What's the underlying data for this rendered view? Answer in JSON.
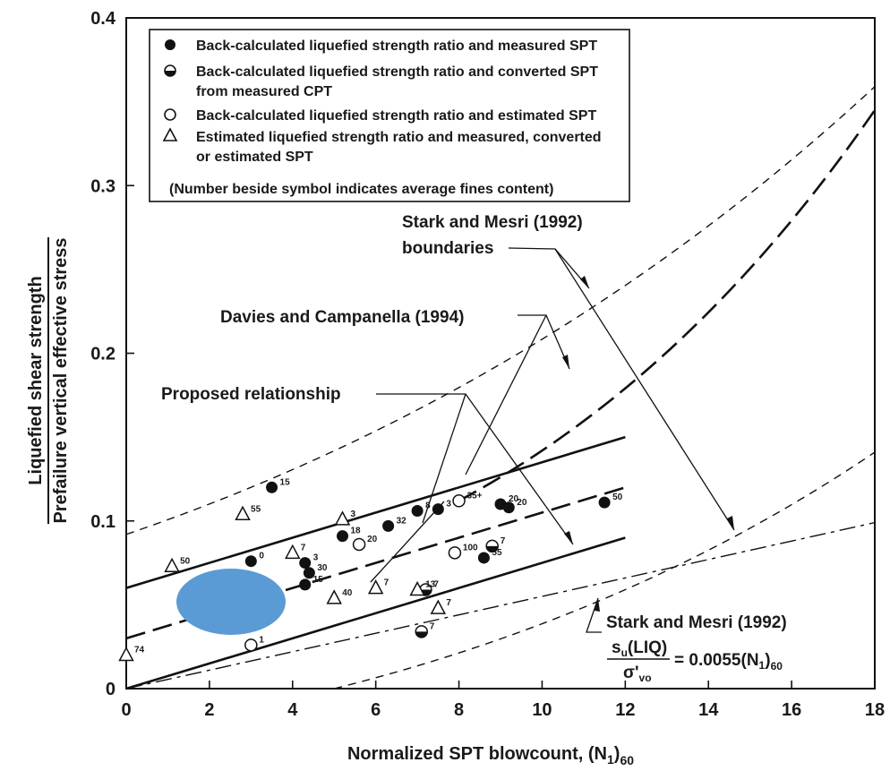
{
  "chart_data": {
    "type": "scatter",
    "title": "",
    "xlabel": "Normalized SPT blowcount, (N",
    "xlabel_sub": "1",
    "xlabel_end": ")",
    "xlabel_sub2": "60",
    "ylabel_top": "Liquefied shear strength",
    "ylabel_bottom": "Prefailure vertical effective stress",
    "xlim": [
      0,
      18
    ],
    "ylim": [
      0,
      0.4
    ],
    "xticks": [
      "0",
      "2",
      "4",
      "6",
      "8",
      "10",
      "12",
      "14",
      "16",
      "18"
    ],
    "yticks": [
      "0",
      "0.1",
      "0.2",
      "0.3",
      "0.4"
    ],
    "grid": false,
    "legend": {
      "position": "top-left",
      "entries": [
        {
          "marker": "filled-circle",
          "lines": [
            "Back-calculated liquefied strength ratio and measured SPT"
          ]
        },
        {
          "marker": "half-circle",
          "lines": [
            "Back-calculated liquefied strength ratio and converted SPT",
            "from measured CPT"
          ]
        },
        {
          "marker": "open-circle",
          "lines": [
            "Back-calculated liquefied strength ratio and estimated SPT"
          ]
        },
        {
          "marker": "triangle",
          "lines": [
            "Estimated liquefied strength ratio and measured, converted",
            "or estimated SPT"
          ]
        }
      ],
      "note": "(Number beside symbol indicates average fines content)"
    },
    "annotations": {
      "stark_boundaries": [
        "Stark and Mesri (1992)",
        "boundaries"
      ],
      "davies": "Davies and Campanella (1994)",
      "proposed": "Proposed relationship",
      "stark_eq_title": "Stark and Mesri (1992)",
      "stark_eq_num": "s",
      "stark_eq_num_sub": "u",
      "stark_eq_num_end": "(LIQ)",
      "stark_eq_den": "σ'",
      "stark_eq_den_sub": "vo",
      "stark_eq_rhs": "= 0.0055(N",
      "stark_eq_rhs_sub": "1",
      "stark_eq_rhs_end": ")",
      "stark_eq_rhs_sub2": "60"
    },
    "series": [
      {
        "marker": "filled-circle",
        "points": [
          {
            "x": 3.0,
            "y": 0.076,
            "label": "0"
          },
          {
            "x": 3.5,
            "y": 0.12,
            "label": "15"
          },
          {
            "x": 4.3,
            "y": 0.075,
            "label": "3"
          },
          {
            "x": 4.4,
            "y": 0.069,
            "label": "30"
          },
          {
            "x": 4.3,
            "y": 0.062,
            "label": "15"
          },
          {
            "x": 5.2,
            "y": 0.091,
            "label": "18"
          },
          {
            "x": 6.3,
            "y": 0.097,
            "label": "32"
          },
          {
            "x": 7.0,
            "y": 0.106,
            "label": "8"
          },
          {
            "x": 7.5,
            "y": 0.107,
            "label": "3"
          },
          {
            "x": 9.0,
            "y": 0.11,
            "label": "20"
          },
          {
            "x": 9.2,
            "y": 0.108,
            "label": "20"
          },
          {
            "x": 8.6,
            "y": 0.078,
            "label": "55"
          },
          {
            "x": 11.5,
            "y": 0.111,
            "label": "50"
          }
        ]
      },
      {
        "marker": "half-circle",
        "points": [
          {
            "x": 8.8,
            "y": 0.085,
            "label": "7"
          },
          {
            "x": 7.2,
            "y": 0.059,
            "label": "7"
          },
          {
            "x": 7.1,
            "y": 0.034,
            "label": "7"
          }
        ]
      },
      {
        "marker": "open-circle",
        "points": [
          {
            "x": 5.6,
            "y": 0.086,
            "label": "20"
          },
          {
            "x": 8.0,
            "y": 0.112,
            "label": "35+"
          },
          {
            "x": 7.9,
            "y": 0.081,
            "label": "100"
          },
          {
            "x": 3.0,
            "y": 0.026,
            "label": "1"
          }
        ]
      },
      {
        "marker": "triangle",
        "points": [
          {
            "x": 2.8,
            "y": 0.104,
            "label": "55"
          },
          {
            "x": 1.1,
            "y": 0.073,
            "label": "50"
          },
          {
            "x": 4.0,
            "y": 0.081,
            "label": "7"
          },
          {
            "x": 5.2,
            "y": 0.101,
            "label": "3"
          },
          {
            "x": 5.0,
            "y": 0.054,
            "label": "40"
          },
          {
            "x": 6.0,
            "y": 0.06,
            "label": "7"
          },
          {
            "x": 7.0,
            "y": 0.059,
            "label": "13"
          },
          {
            "x": 7.5,
            "y": 0.048,
            "label": "7"
          },
          {
            "x": 0.0,
            "y": 0.02,
            "label": "74"
          }
        ]
      }
    ],
    "lines": [
      {
        "style": "solid",
        "x": [
          0,
          12
        ],
        "y": [
          0.06,
          0.15
        ]
      },
      {
        "style": "long-dash",
        "x": [
          0,
          12
        ],
        "y": [
          0.03,
          0.12
        ]
      },
      {
        "style": "solid",
        "x": [
          0,
          12
        ],
        "y": [
          0.0,
          0.09
        ]
      },
      {
        "style": "dash",
        "x": [
          0,
          18
        ],
        "y": [
          0.092,
          0.359
        ]
      },
      {
        "style": "dash",
        "x": [
          5,
          18
        ],
        "y": [
          0.0,
          0.141
        ]
      },
      {
        "style": "dash-dot",
        "x": [
          0,
          18
        ],
        "y": [
          0.0,
          0.099
        ]
      },
      {
        "style": "long-dash",
        "x": [
          8,
          18
        ],
        "y": [
          0.112,
          0.345
        ]
      }
    ]
  },
  "overlay": {
    "shape": "ellipse",
    "color": "#5b9bd5"
  }
}
